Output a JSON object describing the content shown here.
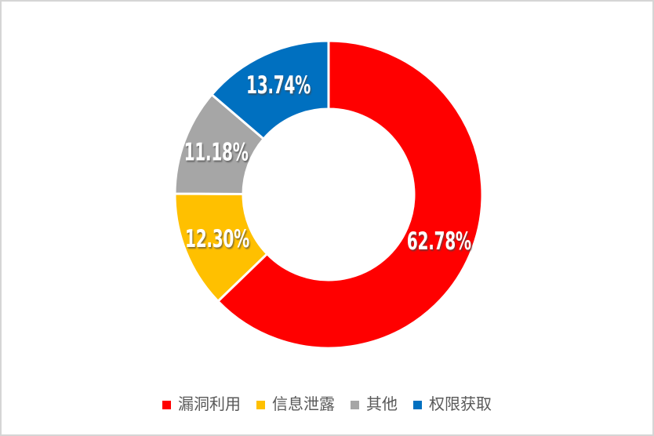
{
  "window": {
    "background_color": "#FFFFFF",
    "border_color": "#D5D5D5"
  },
  "chart_data": {
    "type": "pie",
    "subtype": "donut",
    "title": "",
    "direction": "clockwise",
    "start_angle_deg": 0,
    "donut_hole_ratio": 0.56,
    "grid": false,
    "legend_position": "bottom",
    "label_format": "percent",
    "label_text_color": "#FFFFFF",
    "legend_text_color": "#595959",
    "slices": [
      {
        "name": "vulnerability-exploitation",
        "label": "漏洞利用",
        "value": 62.78,
        "display": "62.78%",
        "color": "#FF0000"
      },
      {
        "name": "information-disclosure",
        "label": "信息泄露",
        "value": 12.3,
        "display": "12.30%",
        "color": "#FFC000"
      },
      {
        "name": "other",
        "label": "其他",
        "value": 11.18,
        "display": "11.18%",
        "color": "#A6A6A6"
      },
      {
        "name": "privilege-acquisition",
        "label": "权限获取",
        "value": 13.74,
        "display": "13.74%",
        "color": "#0070C0"
      }
    ]
  }
}
